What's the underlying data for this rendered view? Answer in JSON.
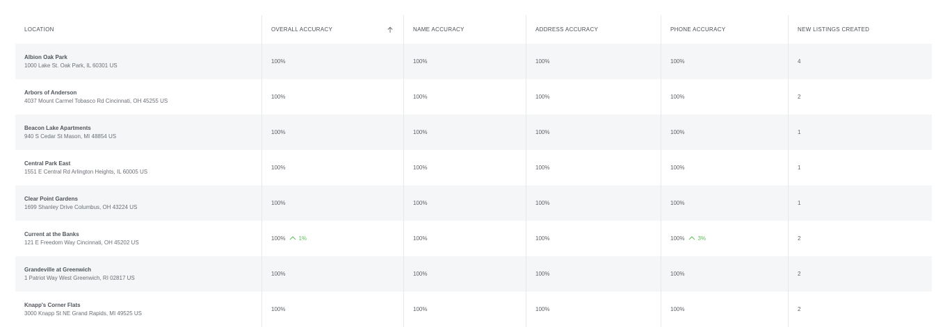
{
  "headers": {
    "location": "LOCATION",
    "overall": "OVERALL ACCURACY",
    "name": "NAME ACCURACY",
    "address": "ADDRESS ACCURACY",
    "phone": "PHONE ACCURACY",
    "new_listings": "NEW LISTINGS CREATED"
  },
  "sort": {
    "column": "overall",
    "direction": "ascending",
    "icon": "arrow-up-icon"
  },
  "accent_colors": {
    "positive_delta": "#5cbf5c",
    "stripe": "#f5f6f7"
  },
  "rows": [
    {
      "name": "Albion Oak Park",
      "address": "1000 Lake St. Oak Park, IL 60301 US",
      "overall": "100%",
      "overall_delta": "",
      "name_acc": "100%",
      "address_acc": "100%",
      "phone": "100%",
      "phone_delta": "",
      "new_listings": "4"
    },
    {
      "name": "Arbors of Anderson",
      "address": "4037 Mount Carmel Tobasco Rd Cincinnati, OH 45255 US",
      "overall": "100%",
      "overall_delta": "",
      "name_acc": "100%",
      "address_acc": "100%",
      "phone": "100%",
      "phone_delta": "",
      "new_listings": "2"
    },
    {
      "name": "Beacon Lake Apartments",
      "address": "940 S Cedar St Mason, MI 48854 US",
      "overall": "100%",
      "overall_delta": "",
      "name_acc": "100%",
      "address_acc": "100%",
      "phone": "100%",
      "phone_delta": "",
      "new_listings": "1"
    },
    {
      "name": "Central Park East",
      "address": "1551 E Central Rd Arlington Heights, IL 60005 US",
      "overall": "100%",
      "overall_delta": "",
      "name_acc": "100%",
      "address_acc": "100%",
      "phone": "100%",
      "phone_delta": "",
      "new_listings": "1"
    },
    {
      "name": "Clear Point Gardens",
      "address": "1699 Shanley Drive Columbus, OH 43224 US",
      "overall": "100%",
      "overall_delta": "",
      "name_acc": "100%",
      "address_acc": "100%",
      "phone": "100%",
      "phone_delta": "",
      "new_listings": "1"
    },
    {
      "name": "Current at the Banks",
      "address": "121 E Freedom Way Cincinnati, OH 45202 US",
      "overall": "100%",
      "overall_delta": "1%",
      "name_acc": "100%",
      "address_acc": "100%",
      "phone": "100%",
      "phone_delta": "3%",
      "new_listings": "2"
    },
    {
      "name": "Grandeville at Greenwich",
      "address": "1 Patriot Way West Greenwich, RI 02817 US",
      "overall": "100%",
      "overall_delta": "",
      "name_acc": "100%",
      "address_acc": "100%",
      "phone": "100%",
      "phone_delta": "",
      "new_listings": "2"
    },
    {
      "name": "Knapp's Corner Flats",
      "address": "3000 Knapp St NE Grand Rapids, MI 49525 US",
      "overall": "100%",
      "overall_delta": "",
      "name_acc": "100%",
      "address_acc": "100%",
      "phone": "100%",
      "phone_delta": "",
      "new_listings": "2"
    }
  ]
}
